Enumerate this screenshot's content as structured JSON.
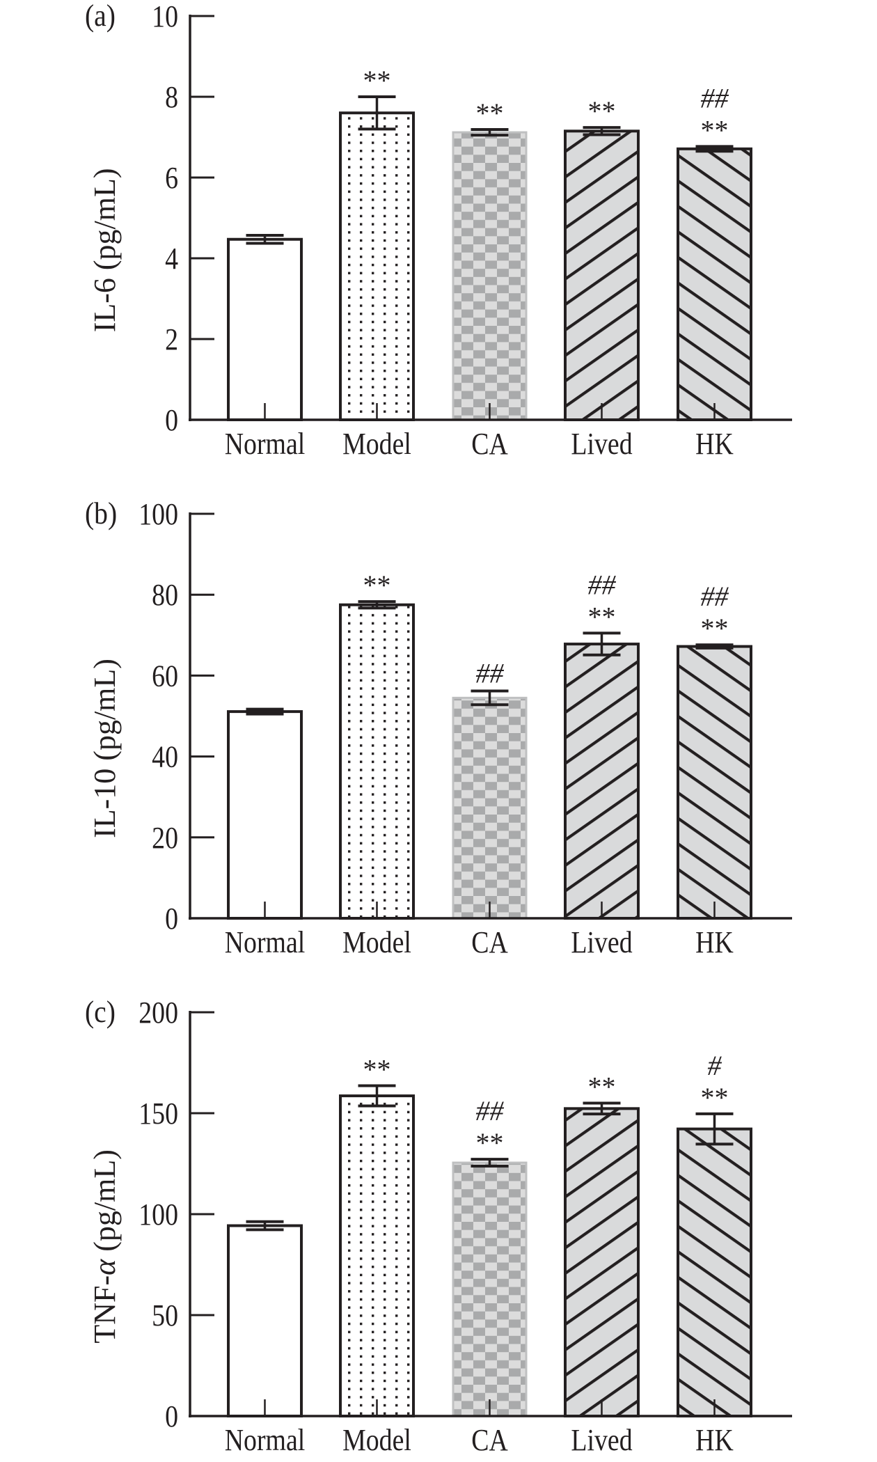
{
  "colors": {
    "ink": "#231f20",
    "hatch_fill": "#d9dadb",
    "checker_light": "#dcdcdc",
    "checker_dark": "#a9aaab",
    "checker_border": "#bfc0c1",
    "dot_fill": "#ffffff"
  },
  "categories": [
    "Normal",
    "Model",
    "CA",
    "Lived",
    "HK"
  ],
  "bar_styles": [
    "plain",
    "dots",
    "checker",
    "hatch-up",
    "hatch-down"
  ],
  "chart_data": [
    {
      "type": "bar",
      "panel_label": "(a)",
      "title": "",
      "xlabel": "",
      "ylabel": "IL-6 (pg/mL)",
      "ylabel_parts": {
        "prefix": "IL-6",
        "italic": "",
        "suffix": " (pg/mL)"
      },
      "ylim": [
        0,
        10
      ],
      "yticks": [
        0,
        2,
        4,
        6,
        8,
        10
      ],
      "ytick_labels": [
        "0",
        "2",
        "4",
        "6",
        "8",
        "10"
      ],
      "grid": false,
      "legend": "none",
      "categories": [
        "Normal",
        "Model",
        "CA",
        "Lived",
        "HK"
      ],
      "values": [
        4.47,
        7.6,
        7.12,
        7.15,
        6.71
      ],
      "errors": [
        0.1,
        0.4,
        0.07,
        0.09,
        0.06
      ],
      "annotations": [
        {
          "star": "",
          "hash": ""
        },
        {
          "star": "**",
          "hash": ""
        },
        {
          "star": "**",
          "hash": ""
        },
        {
          "star": "**",
          "hash": ""
        },
        {
          "star": "**",
          "hash": "##"
        }
      ]
    },
    {
      "type": "bar",
      "panel_label": "(b)",
      "title": "",
      "xlabel": "",
      "ylabel": "IL-10 (pg/mL)",
      "ylabel_parts": {
        "prefix": "IL-10",
        "italic": "",
        "suffix": " (pg/mL)"
      },
      "ylim": [
        0,
        100
      ],
      "yticks": [
        0,
        20,
        40,
        60,
        80,
        100
      ],
      "ytick_labels": [
        "0",
        "20",
        "40",
        "60",
        "80",
        "100"
      ],
      "grid": false,
      "legend": "none",
      "categories": [
        "Normal",
        "Model",
        "CA",
        "Lived",
        "HK"
      ],
      "values": [
        51.1,
        77.5,
        54.5,
        67.8,
        67.2
      ],
      "errors": [
        0.6,
        0.8,
        1.7,
        2.7,
        0.4
      ],
      "annotations": [
        {
          "star": "",
          "hash": ""
        },
        {
          "star": "**",
          "hash": ""
        },
        {
          "star": "",
          "hash": "##"
        },
        {
          "star": "**",
          "hash": "##"
        },
        {
          "star": "**",
          "hash": "##"
        }
      ]
    },
    {
      "type": "bar",
      "panel_label": "(c)",
      "title": "",
      "xlabel": "",
      "ylabel": "TNF-α (pg/mL)",
      "ylabel_parts": {
        "prefix": "TNF-",
        "italic": "α",
        "suffix": " (pg/mL)"
      },
      "ylim": [
        0,
        200
      ],
      "yticks": [
        0,
        50,
        100,
        150,
        200
      ],
      "ytick_labels": [
        "0",
        "50",
        "100",
        "150",
        "200"
      ],
      "grid": false,
      "legend": "none",
      "categories": [
        "Normal",
        "Model",
        "CA",
        "Lived",
        "HK"
      ],
      "values": [
        94.3,
        158.6,
        125.5,
        152.3,
        142.2
      ],
      "errors": [
        2.0,
        5.0,
        1.7,
        2.7,
        7.5
      ],
      "annotations": [
        {
          "star": "",
          "hash": ""
        },
        {
          "star": "**",
          "hash": ""
        },
        {
          "star": "**",
          "hash": "##"
        },
        {
          "star": "**",
          "hash": ""
        },
        {
          "star": "**",
          "hash": "#"
        }
      ]
    }
  ]
}
